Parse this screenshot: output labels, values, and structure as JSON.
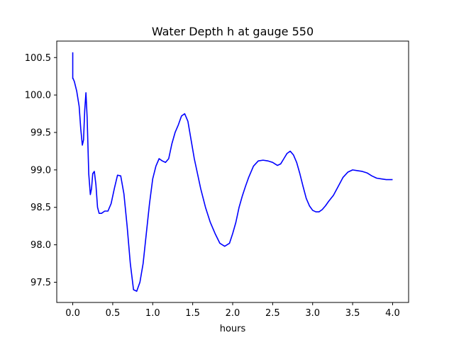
{
  "chart_data": {
    "type": "line",
    "title": "Water Depth h at gauge 550",
    "xlabel": "hours",
    "ylabel": "",
    "xlim": [
      -0.2,
      4.2
    ],
    "ylim": [
      97.23,
      100.72
    ],
    "xticks": [
      0.0,
      0.5,
      1.0,
      1.5,
      2.0,
      2.5,
      3.0,
      3.5,
      4.0
    ],
    "xtick_labels": [
      "0.0",
      "0.5",
      "1.0",
      "1.5",
      "2.0",
      "2.5",
      "3.0",
      "3.5",
      "4.0"
    ],
    "yticks": [
      97.5,
      98.0,
      98.5,
      99.0,
      99.5,
      100.0,
      100.5
    ],
    "ytick_labels": [
      "97.5",
      "98.0",
      "98.5",
      "99.0",
      "99.5",
      "100.0",
      "100.5"
    ],
    "grid": false,
    "legend": "none",
    "series": [
      {
        "color": "#0000ff",
        "x": [
          0.0,
          0.0,
          0.0,
          0.02,
          0.05,
          0.08,
          0.1,
          0.12,
          0.135,
          0.15,
          0.165,
          0.18,
          0.2,
          0.22,
          0.235,
          0.25,
          0.27,
          0.29,
          0.31,
          0.33,
          0.36,
          0.4,
          0.44,
          0.48,
          0.52,
          0.56,
          0.6,
          0.64,
          0.68,
          0.72,
          0.76,
          0.8,
          0.84,
          0.88,
          0.92,
          0.96,
          1.0,
          1.04,
          1.08,
          1.12,
          1.16,
          1.2,
          1.24,
          1.28,
          1.32,
          1.36,
          1.4,
          1.44,
          1.48,
          1.52,
          1.56,
          1.6,
          1.66,
          1.72,
          1.78,
          1.84,
          1.9,
          1.96,
          2.0,
          2.04,
          2.08,
          2.12,
          2.16,
          2.2,
          2.26,
          2.32,
          2.38,
          2.44,
          2.5,
          2.56,
          2.6,
          2.64,
          2.68,
          2.72,
          2.76,
          2.8,
          2.84,
          2.88,
          2.92,
          2.96,
          3.0,
          3.04,
          3.08,
          3.12,
          3.16,
          3.2,
          3.26,
          3.32,
          3.38,
          3.44,
          3.5,
          3.56,
          3.62,
          3.68,
          3.74,
          3.8,
          3.86,
          3.92,
          3.96,
          4.0
        ],
        "y": [
          100.57,
          100.22,
          100.23,
          100.18,
          100.05,
          99.85,
          99.55,
          99.33,
          99.4,
          99.8,
          100.03,
          99.7,
          98.95,
          98.67,
          98.75,
          98.95,
          98.98,
          98.8,
          98.5,
          98.42,
          98.42,
          98.45,
          98.45,
          98.55,
          98.75,
          98.93,
          98.92,
          98.68,
          98.25,
          97.75,
          97.4,
          97.38,
          97.5,
          97.75,
          98.15,
          98.55,
          98.88,
          99.05,
          99.15,
          99.12,
          99.1,
          99.15,
          99.35,
          99.5,
          99.6,
          99.72,
          99.75,
          99.65,
          99.4,
          99.15,
          98.95,
          98.75,
          98.5,
          98.3,
          98.15,
          98.02,
          97.98,
          98.02,
          98.15,
          98.3,
          98.5,
          98.65,
          98.78,
          98.9,
          99.05,
          99.12,
          99.13,
          99.12,
          99.1,
          99.06,
          99.08,
          99.15,
          99.22,
          99.25,
          99.2,
          99.1,
          98.95,
          98.78,
          98.62,
          98.52,
          98.46,
          98.44,
          98.44,
          98.47,
          98.52,
          98.58,
          98.66,
          98.78,
          98.9,
          98.97,
          99.0,
          98.99,
          98.98,
          98.96,
          98.92,
          98.89,
          98.88,
          98.87,
          98.87,
          98.87
        ]
      }
    ]
  }
}
